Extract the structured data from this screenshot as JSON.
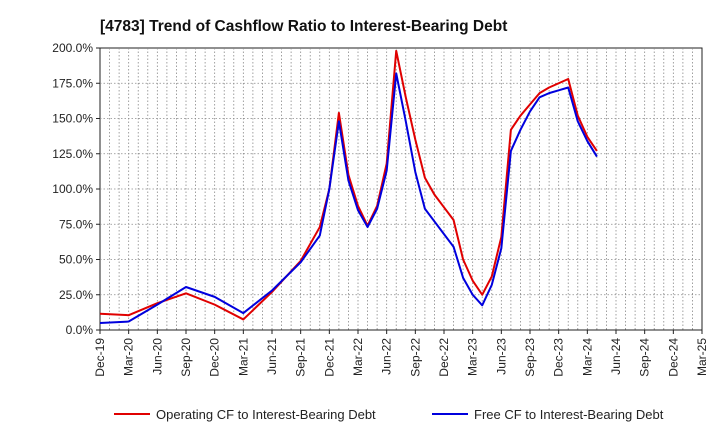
{
  "chart_data": {
    "type": "line",
    "title": "[4783]  Trend of Cashflow Ratio to Interest-Bearing Debt",
    "xlabel": "",
    "ylabel": "",
    "ylim": [
      0,
      200
    ],
    "y_ticks": [
      0,
      25,
      50,
      75,
      100,
      125,
      150,
      175,
      200
    ],
    "y_tick_labels": [
      "0.0%",
      "25.0%",
      "50.0%",
      "75.0%",
      "100.0%",
      "125.0%",
      "150.0%",
      "175.0%",
      "200.0%"
    ],
    "x_tick_labels": [
      "Dec-19",
      "Mar-20",
      "Jun-20",
      "Sep-20",
      "Dec-20",
      "Mar-21",
      "Jun-21",
      "Sep-21",
      "Dec-21",
      "Mar-22",
      "Jun-22",
      "Sep-22",
      "Dec-22",
      "Mar-23",
      "Jun-23",
      "Sep-23",
      "Dec-23",
      "Mar-24",
      "Jun-24",
      "Sep-24",
      "Dec-24",
      "Mar-25"
    ],
    "x_months": [
      "Dec-19",
      "Jan-20",
      "Feb-20",
      "Mar-20",
      "Apr-20",
      "May-20",
      "Jun-20",
      "Jul-20",
      "Aug-20",
      "Sep-20",
      "Oct-20",
      "Nov-20",
      "Dec-20",
      "Jan-21",
      "Feb-21",
      "Mar-21",
      "Apr-21",
      "May-21",
      "Jun-21",
      "Jul-21",
      "Aug-21",
      "Sep-21",
      "Oct-21",
      "Nov-21",
      "Dec-21",
      "Jan-22",
      "Feb-22",
      "Mar-22",
      "Apr-22",
      "May-22",
      "Jun-22",
      "Jul-22",
      "Aug-22",
      "Sep-22",
      "Oct-22",
      "Nov-22",
      "Dec-22",
      "Jan-23",
      "Feb-23",
      "Mar-23",
      "Apr-23",
      "May-23",
      "Jun-23",
      "Jul-23",
      "Aug-23",
      "Sep-23",
      "Oct-23",
      "Nov-23",
      "Dec-23",
      "Jan-24",
      "Feb-24",
      "Mar-24",
      "Apr-24",
      "May-24",
      "Jun-24",
      "Jul-24",
      "Aug-24",
      "Sep-24",
      "Oct-24",
      "Nov-24",
      "Dec-24",
      "Jan-25",
      "Feb-25",
      "Mar-25"
    ],
    "grid": true,
    "legend_position": "bottom",
    "series": [
      {
        "name": "Operating CF to Interest-Bearing Debt",
        "color": "#e00000",
        "values": [
          11.5,
          null,
          null,
          10.5,
          null,
          null,
          19,
          null,
          null,
          26,
          null,
          null,
          18,
          null,
          null,
          7.5,
          null,
          null,
          27,
          null,
          null,
          49,
          null,
          73,
          100,
          154,
          110,
          88,
          74,
          88,
          118,
          198,
          165,
          135,
          108,
          96,
          87,
          78,
          50,
          35,
          25,
          38,
          66,
          142,
          152,
          160,
          168,
          172,
          175,
          178,
          152,
          137,
          127,
          null,
          null,
          null,
          null,
          null,
          null,
          null,
          null,
          null,
          null,
          null
        ]
      },
      {
        "name": "Free CF to Interest-Bearing Debt",
        "color": "#0000dd",
        "values": [
          5,
          null,
          null,
          6,
          null,
          null,
          18,
          null,
          null,
          30.5,
          null,
          null,
          23.5,
          null,
          null,
          12,
          null,
          null,
          28,
          null,
          null,
          48,
          null,
          67,
          100,
          148,
          106,
          85,
          73,
          86,
          113,
          182,
          148,
          112,
          86,
          77,
          68,
          59,
          37,
          25,
          17.5,
          32,
          58,
          127,
          142,
          155,
          165,
          168,
          170,
          172,
          148,
          134,
          123,
          null,
          null,
          null,
          null,
          null,
          null,
          null,
          null,
          null,
          null,
          null
        ]
      }
    ]
  }
}
